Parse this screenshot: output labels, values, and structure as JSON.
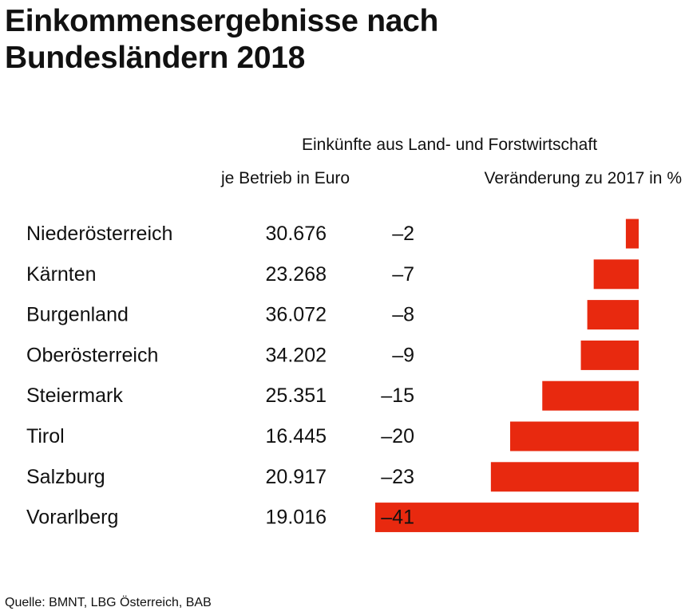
{
  "title_line1": "Einkommensergebnisse nach",
  "title_line2": "Bundesländern 2018",
  "header_main": "Einkünfte aus Land- und Forstwirtschaft",
  "header_col1": "je Betrieb in Euro",
  "header_col2": "Veränderung zu 2017 in %",
  "source": "Quelle: BMNT, LBG Österreich, BAB",
  "bar_color": "#e8290f",
  "chart_data": {
    "type": "bar",
    "orientation": "horizontal",
    "categories": [
      "Niederösterreich",
      "Kärnten",
      "Burgenland",
      "Oberösterreich",
      "Steiermark",
      "Tirol",
      "Salzburg",
      "Vorarlberg"
    ],
    "income_per_farm_eur": [
      "30.676",
      "23.268",
      "36.072",
      "34.202",
      "25.351",
      "16.445",
      "20.917",
      "19.016"
    ],
    "change_labels": [
      "–2",
      "–7",
      "–8",
      "–9",
      "–15",
      "–20",
      "–23",
      "–41"
    ],
    "values": [
      -2,
      -7,
      -8,
      -9,
      -15,
      -20,
      -23,
      -41
    ],
    "xlim": [
      -41,
      0
    ],
    "grid": false,
    "legend": "none"
  }
}
